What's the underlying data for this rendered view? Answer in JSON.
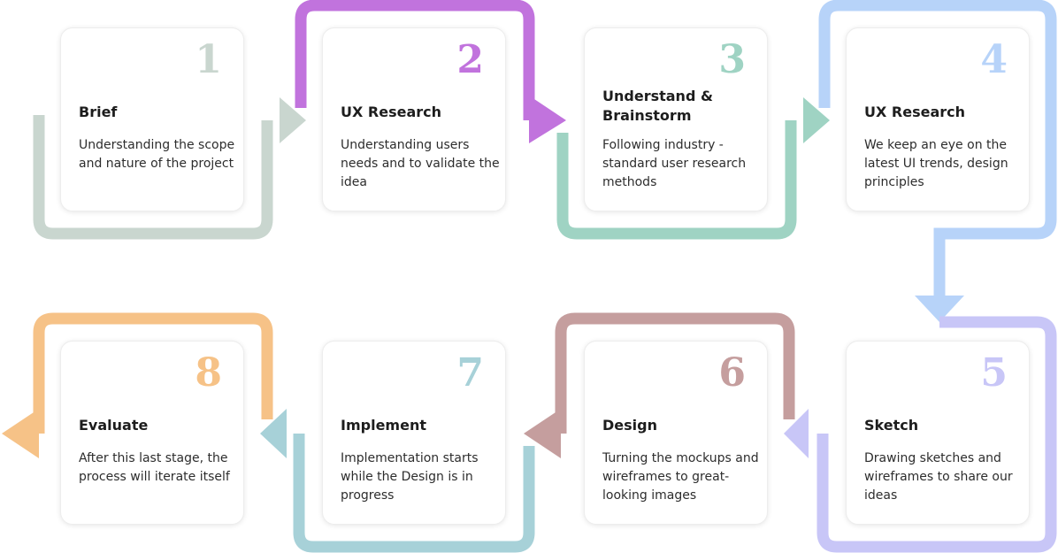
{
  "steps": [
    {
      "number": "1",
      "title": "Brief",
      "description": "Understanding the scope and nature of the project",
      "color": "#c9d6cf"
    },
    {
      "number": "2",
      "title": "UX Research",
      "description": "Understanding users needs and to validate the idea",
      "color": "#c173dd"
    },
    {
      "number": "3",
      "title": "Understand & Brainstorm",
      "description": "Following industry - standard user research methods",
      "color": "#9fd3c3"
    },
    {
      "number": "4",
      "title": "UX Research",
      "description": "We keep an eye on the latest UI trends, design principles",
      "color": "#b7d3f9"
    },
    {
      "number": "5",
      "title": "Sketch",
      "description": "Drawing sketches and wireframes to share our ideas",
      "color": "#c8c6f7"
    },
    {
      "number": "6",
      "title": "Design",
      "description": "Turning the mockups and wireframes to great-looking images",
      "color": "#c59e9e"
    },
    {
      "number": "7",
      "title": "Implement",
      "description": "Implementation starts while the Design is in progress",
      "color": "#a7d1d8"
    },
    {
      "number": "8",
      "title": "Evaluate",
      "description": "After this last stage, the process will iterate itself",
      "color": "#f6c287"
    }
  ]
}
